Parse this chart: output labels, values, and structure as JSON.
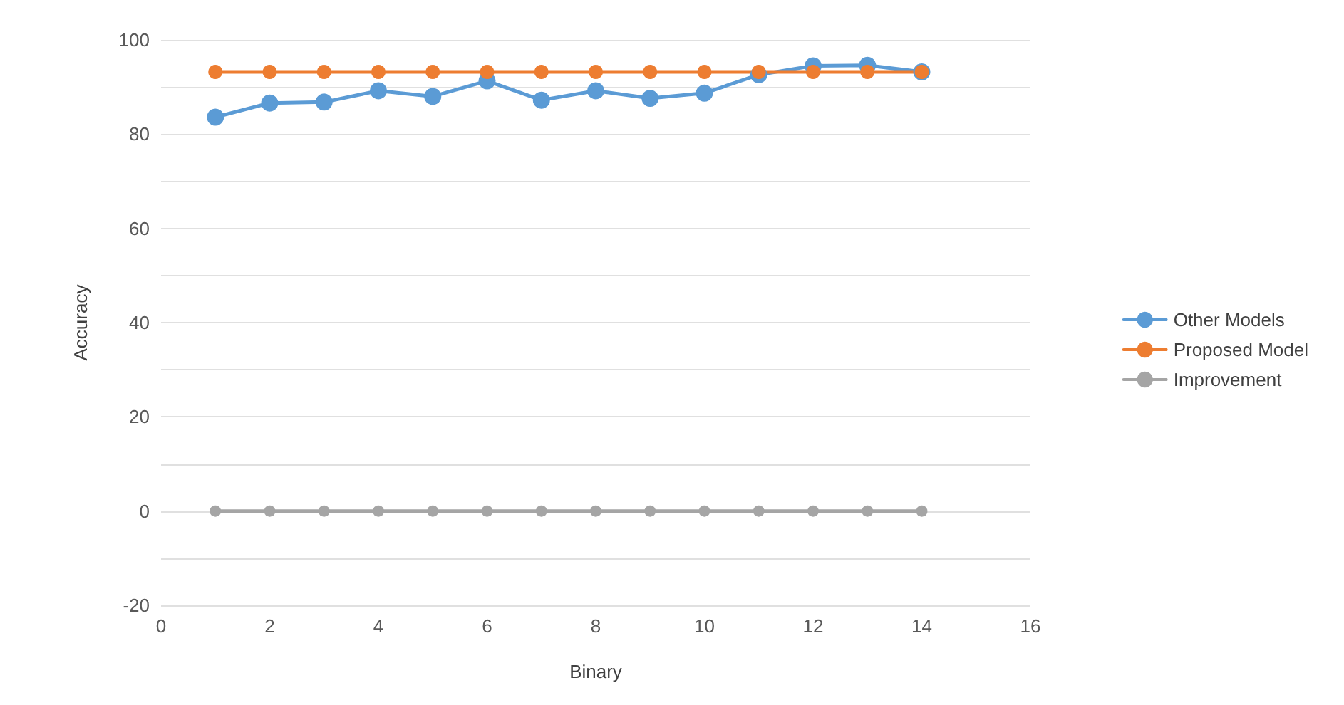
{
  "chart_data": {
    "type": "line",
    "xlabel": "Binary",
    "ylabel": "Accuracy",
    "x": [
      1,
      2,
      3,
      4,
      5,
      6,
      7,
      8,
      9,
      10,
      11,
      12,
      13,
      14
    ],
    "series": [
      {
        "name": "Other Models",
        "color": "#5b9bd5",
        "values": [
          83.6,
          86.6,
          86.8,
          89.2,
          88.0,
          91.3,
          87.2,
          89.2,
          87.6,
          88.7,
          92.6,
          94.5,
          94.6,
          93.2
        ]
      },
      {
        "name": "Proposed Model",
        "color": "#ed7d31",
        "values": [
          93.2,
          93.2,
          93.2,
          93.2,
          93.2,
          93.2,
          93.2,
          93.2,
          93.2,
          93.2,
          93.2,
          93.2,
          93.2,
          93.2
        ]
      },
      {
        "name": "Improvement",
        "color": "#a5a5a5",
        "values": [
          0,
          0,
          0,
          0,
          0,
          0,
          0,
          0,
          0,
          0,
          0,
          0,
          0,
          0
        ]
      }
    ],
    "xlim": [
      0,
      16
    ],
    "xticks": [
      0,
      2,
      4,
      6,
      8,
      10,
      12,
      14,
      16
    ],
    "ylim": [
      -20,
      100
    ],
    "yticks": [
      -20,
      {
        "value": -10,
        "label": null
      },
      0,
      {
        "value": 10,
        "label": null
      },
      20,
      {
        "value": 30,
        "label": null
      },
      40,
      {
        "value": 50,
        "label": null
      },
      60,
      {
        "value": 70,
        "label": null
      },
      80,
      {
        "value": 90,
        "label": null
      },
      100
    ],
    "grid": "y",
    "legend": "right",
    "marker": "circle",
    "line_style": "solid"
  }
}
